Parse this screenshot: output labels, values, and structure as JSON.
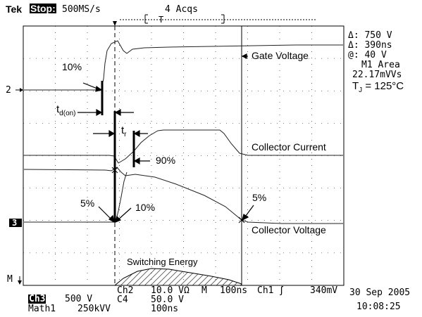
{
  "header": {
    "brand": "Tek",
    "state": "Stop:",
    "sample_rate": "500MS/s",
    "acqs": "4 Acqs"
  },
  "readout": {
    "delta_v": "Δ: 750 V",
    "delta_t": "Δ: 390ns",
    "at": "@: 40 V",
    "math_label": "M1 Area",
    "math_value": "22.17mVVs",
    "tj": "T",
    "tj_sub": "J",
    "tj_value": " = 125°C"
  },
  "channel_markers": {
    "ch2": "2",
    "ch3": "3",
    "math": "M"
  },
  "annotations": {
    "gate_voltage": "Gate Voltage",
    "collector_current": "Collector Current",
    "collector_voltage": "Collector Voltage",
    "switching_energy": "Switching Energy",
    "pct10_gate": "10%",
    "td_on": "t",
    "td_on_sub": "d(on)",
    "tr": "t",
    "tr_sub": "r",
    "pct90": "90%",
    "pct5_left": "5%",
    "pct10_bottom": "10%",
    "pct5_right": "5%"
  },
  "footer": {
    "ch3_label": "Ch3",
    "ch3_scale": "500 V",
    "ch2_label": "Ch2",
    "ch2_scale": "10.0 VΩ",
    "timebase_prefix": "M",
    "timebase": "100ns",
    "trigger_src": "Ch1",
    "trigger_level": "340mV",
    "ch4_label": "C4",
    "ch4_scale": "50.0 V",
    "math1_label": "Math1",
    "math1_scale": "250kVV",
    "math1_time": "100ns",
    "date": "30 Sep 2005",
    "time": "10:08:25"
  },
  "colors": {
    "trace": "#222222",
    "grid": "#000000",
    "background": "#ffffff"
  }
}
